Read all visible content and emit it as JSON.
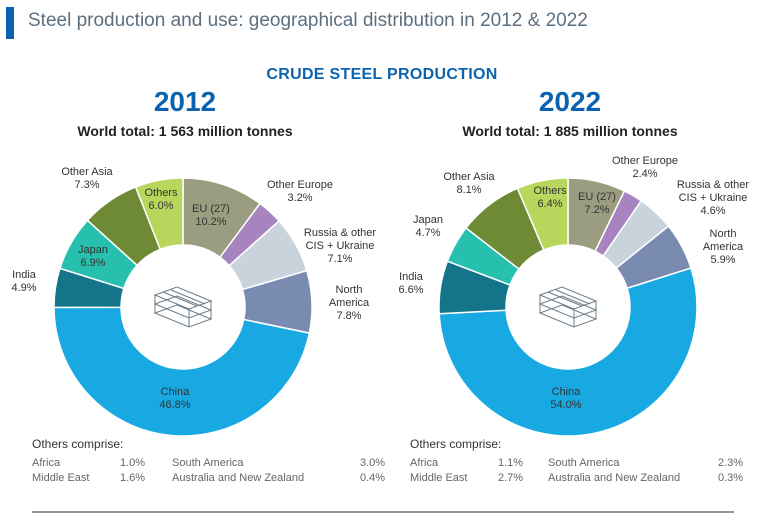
{
  "header": {
    "title": "Steel production and use: geographical distribution in 2012 & 2022",
    "section": "CRUDE STEEL PRODUCTION"
  },
  "colors": {
    "accent": "#0b63b0",
    "eu": "#9a9d7f",
    "other_europe": "#a783c0",
    "russia_cis": "#c8d3db",
    "north_america": "#7a8bb2",
    "china": "#18a9e3",
    "india": "#13748a",
    "japan": "#27bfae",
    "other_asia": "#6f8a35",
    "others": "#b9d65c"
  },
  "chart_data": [
    {
      "type": "pie",
      "year": "2012",
      "world_total": "World total: 1 563 million tonnes",
      "slices": [
        {
          "name": "EU (27)",
          "value": 10.2,
          "label": "10.2%",
          "color_key": "eu"
        },
        {
          "name": "Other Europe",
          "value": 3.2,
          "label": "3.2%",
          "color_key": "other_europe"
        },
        {
          "name": "Russia & other CIS + Ukraine",
          "line1": "Russia & other",
          "line2": "CIS + Ukraine",
          "value": 7.1,
          "label": "7.1%",
          "color_key": "russia_cis"
        },
        {
          "name": "North America",
          "line1": "North",
          "line2": "America",
          "value": 7.8,
          "label": "7.8%",
          "color_key": "north_america"
        },
        {
          "name": "China",
          "value": 46.8,
          "label": "46.8%",
          "color_key": "china"
        },
        {
          "name": "India",
          "value": 4.9,
          "label": "4.9%",
          "color_key": "india"
        },
        {
          "name": "Japan",
          "value": 6.9,
          "label": "6.9%",
          "color_key": "japan"
        },
        {
          "name": "Other Asia",
          "value": 7.3,
          "label": "7.3%",
          "color_key": "other_asia"
        },
        {
          "name": "Others",
          "value": 6.0,
          "label": "6.0%",
          "color_key": "others"
        }
      ],
      "others_title": "Others comprise:",
      "others_rows": [
        {
          "n1": "Africa",
          "v1": "1.0%",
          "n2": "South America",
          "v2": "3.0%"
        },
        {
          "n1": "Middle East",
          "v1": "1.6%",
          "n2": "Australia and New Zealand",
          "v2": "0.4%"
        }
      ]
    },
    {
      "type": "pie",
      "year": "2022",
      "world_total": "World total: 1 885 million tonnes",
      "slices": [
        {
          "name": "EU (27)",
          "value": 7.2,
          "label": "7.2%",
          "color_key": "eu"
        },
        {
          "name": "Other Europe",
          "value": 2.4,
          "label": "2.4%",
          "color_key": "other_europe"
        },
        {
          "name": "Russia & other CIS + Ukraine",
          "line1": "Russia & other",
          "line2": "CIS + Ukraine",
          "value": 4.6,
          "label": "4.6%",
          "color_key": "russia_cis"
        },
        {
          "name": "North America",
          "line1": "North",
          "line2": "America",
          "value": 5.9,
          "label": "5.9%",
          "color_key": "north_america"
        },
        {
          "name": "China",
          "value": 54.0,
          "label": "54.0%",
          "color_key": "china"
        },
        {
          "name": "India",
          "value": 6.6,
          "label": "6.6%",
          "color_key": "india"
        },
        {
          "name": "Japan",
          "value": 4.7,
          "label": "4.7%",
          "color_key": "japan"
        },
        {
          "name": "Other Asia",
          "value": 8.1,
          "label": "8.1%",
          "color_key": "other_asia"
        },
        {
          "name": "Others",
          "value": 6.4,
          "label": "6.4%",
          "color_key": "others"
        }
      ],
      "others_title": "Others comprise:",
      "others_rows": [
        {
          "n1": "Africa",
          "v1": "1.1%",
          "n2": "South America",
          "v2": "2.3%"
        },
        {
          "n1": "Middle East",
          "v1": "2.7%",
          "n2": "Australia and New Zealand",
          "v2": "0.3%"
        }
      ]
    }
  ]
}
